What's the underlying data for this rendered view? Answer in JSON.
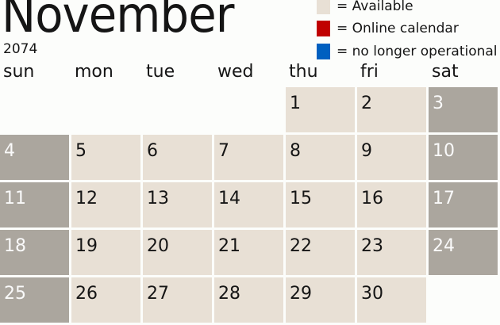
{
  "title": "November",
  "year": "2074",
  "legend": [
    {
      "label": "= Available",
      "color": "#e8e0d5"
    },
    {
      "label": "= Online calendar",
      "color": "#c00000"
    },
    {
      "label": "= no longer operational",
      "color": "#0060c0"
    }
  ],
  "days": [
    "sun",
    "mon",
    "tue",
    "wed",
    "thu",
    "fri",
    "sat"
  ],
  "first_weekday": 4,
  "dates": [
    "1",
    "2",
    "3",
    "4",
    "5",
    "6",
    "7",
    "8",
    "9",
    "10",
    "11",
    "12",
    "13",
    "14",
    "15",
    "16",
    "17",
    "18",
    "19",
    "20",
    "21",
    "22",
    "23",
    "24",
    "25",
    "26",
    "27",
    "28",
    "29",
    "30"
  ],
  "colors": {
    "available": "#e8e0d5",
    "weekend": "#aba69e"
  }
}
